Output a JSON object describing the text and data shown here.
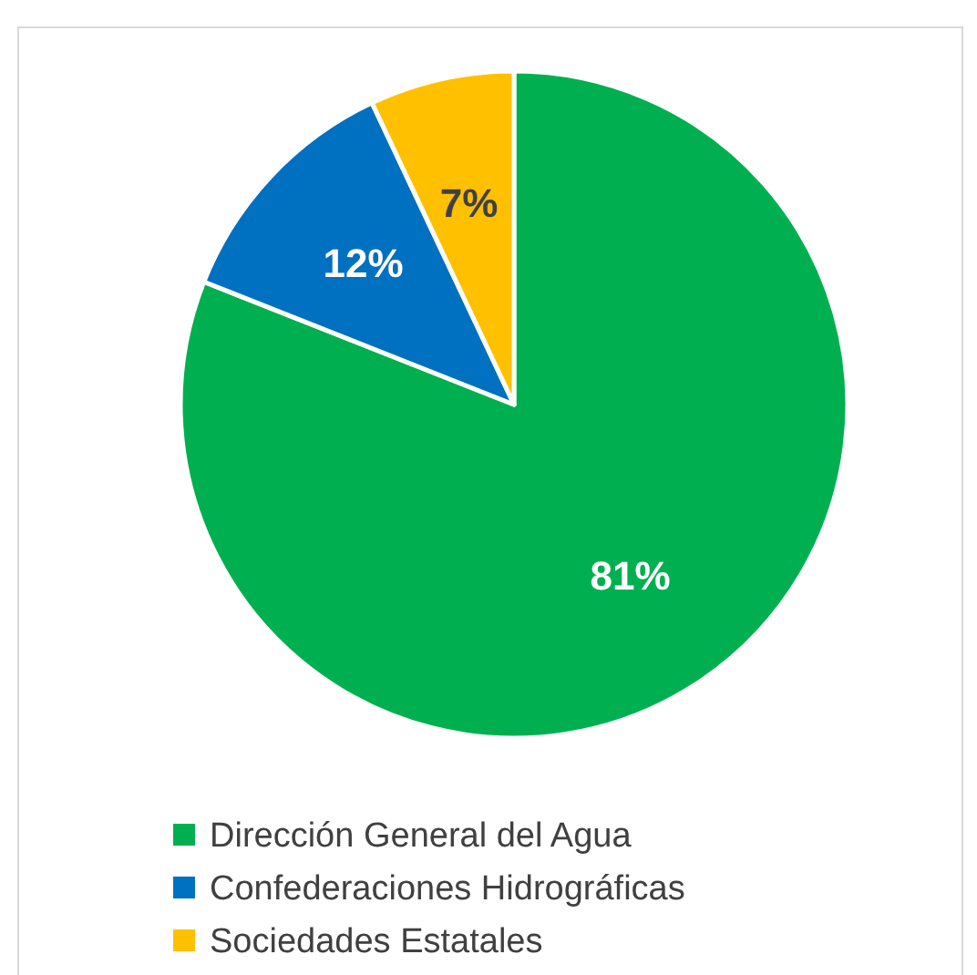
{
  "chart_data": {
    "type": "pie",
    "categories": [
      "Dirección General del Agua",
      "Confederaciones Hidrográficas",
      "Sociedades Estatales"
    ],
    "values": [
      81,
      12,
      7
    ],
    "colors": [
      "#00b050",
      "#0070c0",
      "#ffc000"
    ],
    "value_labels": [
      "81%",
      "12%",
      "7%"
    ],
    "legend": "bottom"
  }
}
